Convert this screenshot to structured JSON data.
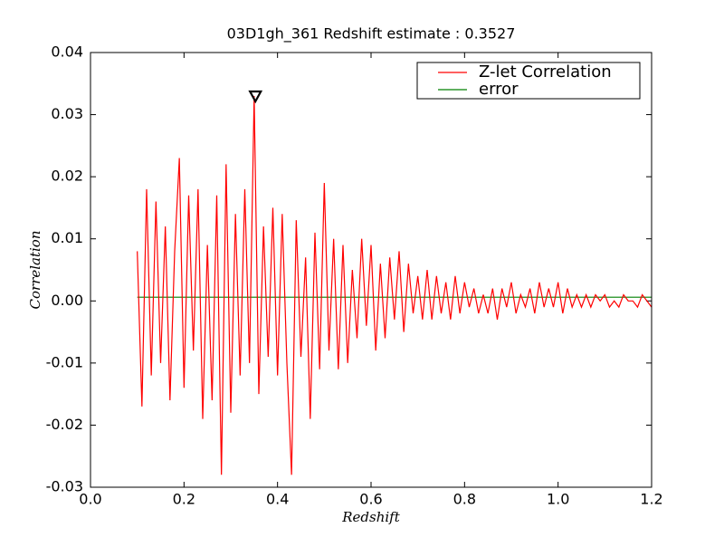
{
  "chart_data": {
    "type": "line",
    "title": "03D1gh_361 Redshift estimate : 0.3527",
    "x_label": "Redshift",
    "y_label": "Correlation",
    "x": [
      0.1,
      0.11,
      0.12,
      0.13,
      0.14,
      0.15,
      0.16,
      0.17,
      0.18,
      0.19,
      0.2,
      0.21,
      0.22,
      0.23,
      0.24,
      0.25,
      0.26,
      0.27,
      0.28,
      0.29,
      0.3,
      0.31,
      0.32,
      0.33,
      0.34,
      0.35,
      0.36,
      0.37,
      0.38,
      0.39,
      0.4,
      0.41,
      0.42,
      0.43,
      0.44,
      0.45,
      0.46,
      0.47,
      0.48,
      0.49,
      0.5,
      0.51,
      0.52,
      0.53,
      0.54,
      0.55,
      0.56,
      0.57,
      0.58,
      0.59,
      0.6,
      0.61,
      0.62,
      0.63,
      0.64,
      0.65,
      0.66,
      0.67,
      0.68,
      0.69,
      0.7,
      0.71,
      0.72,
      0.73,
      0.74,
      0.75,
      0.76,
      0.77,
      0.78,
      0.79,
      0.8,
      0.81,
      0.82,
      0.83,
      0.84,
      0.85,
      0.86,
      0.87,
      0.88,
      0.89,
      0.9,
      0.91,
      0.92,
      0.93,
      0.94,
      0.95,
      0.96,
      0.97,
      0.98,
      0.99,
      1.0,
      1.01,
      1.02,
      1.03,
      1.04,
      1.05,
      1.06,
      1.07,
      1.08,
      1.09,
      1.1,
      1.11,
      1.12,
      1.13,
      1.14,
      1.15,
      1.16,
      1.17,
      1.18,
      1.19,
      1.2
    ],
    "series": [
      {
        "name": "Z-let Correlation",
        "color": "#ff0000",
        "values": [
          0.008,
          -0.017,
          0.018,
          -0.012,
          0.016,
          -0.01,
          0.012,
          -0.016,
          0.008,
          0.023,
          -0.014,
          0.017,
          -0.008,
          0.018,
          -0.019,
          0.009,
          -0.016,
          0.017,
          -0.028,
          0.022,
          -0.018,
          0.014,
          -0.012,
          0.018,
          -0.01,
          0.033,
          -0.015,
          0.012,
          -0.009,
          0.015,
          -0.012,
          0.014,
          -0.01,
          -0.028,
          0.013,
          -0.009,
          0.007,
          -0.019,
          0.011,
          -0.011,
          0.019,
          -0.008,
          0.01,
          -0.011,
          0.009,
          -0.01,
          0.005,
          -0.006,
          0.01,
          -0.004,
          0.009,
          -0.008,
          0.006,
          -0.006,
          0.007,
          -0.003,
          0.008,
          -0.005,
          0.006,
          -0.002,
          0.004,
          -0.003,
          0.005,
          -0.003,
          0.004,
          -0.002,
          0.003,
          -0.003,
          0.004,
          -0.002,
          0.003,
          -0.001,
          0.002,
          -0.002,
          0.001,
          -0.002,
          0.002,
          -0.003,
          0.002,
          -0.001,
          0.003,
          -0.002,
          0.001,
          -0.001,
          0.002,
          -0.002,
          0.003,
          -0.001,
          0.002,
          -0.001,
          0.003,
          -0.002,
          0.002,
          -0.001,
          0.001,
          -0.001,
          0.001,
          -0.001,
          0.001,
          0.0,
          0.001,
          -0.001,
          0.0,
          -0.001,
          0.001,
          0.0,
          0.0,
          -0.001,
          0.001,
          0.0,
          -0.001
        ]
      },
      {
        "name": "error",
        "color": "#008000",
        "values": [
          0.0006,
          0.0006,
          0.0006,
          0.0006,
          0.0006,
          0.0006,
          0.0006,
          0.0006,
          0.0006,
          0.0006,
          0.0006,
          0.0006,
          0.0006,
          0.0006,
          0.0006,
          0.0006,
          0.0006,
          0.0006,
          0.0006,
          0.0006,
          0.0006,
          0.0006,
          0.0006,
          0.0006,
          0.0006,
          0.0006,
          0.0006,
          0.0006,
          0.0006,
          0.0006,
          0.0006,
          0.0006,
          0.0006,
          0.0006,
          0.0006,
          0.0006,
          0.0006,
          0.0006,
          0.0006,
          0.0006,
          0.0006,
          0.0006,
          0.0006,
          0.0006,
          0.0006,
          0.0006,
          0.0006,
          0.0006,
          0.0006,
          0.0006,
          0.0006,
          0.0006,
          0.0006,
          0.0006,
          0.0006,
          0.0006,
          0.0006,
          0.0006,
          0.0006,
          0.0006,
          0.0006,
          0.0006,
          0.0006,
          0.0006,
          0.0006,
          0.0006,
          0.0006,
          0.0006,
          0.0006,
          0.0006,
          0.0006,
          0.0006,
          0.0006,
          0.0006,
          0.0006,
          0.0006,
          0.0006,
          0.0006,
          0.0006,
          0.0006,
          0.0006,
          0.0006,
          0.0006,
          0.0006,
          0.0006,
          0.0006,
          0.0006,
          0.0006,
          0.0006,
          0.0006,
          0.0006,
          0.0006,
          0.0006,
          0.0006,
          0.0006,
          0.0006,
          0.0006,
          0.0006,
          0.0006,
          0.0006,
          0.0006,
          0.0006,
          0.0006,
          0.0006,
          0.0006,
          0.0006,
          0.0006,
          0.0006,
          0.0006,
          0.0006,
          0.0006
        ]
      }
    ],
    "marker": {
      "x": 0.3527,
      "y": 0.033
    },
    "xlim": [
      0.0,
      1.2
    ],
    "ylim": [
      -0.03,
      0.04
    ],
    "xticks": [
      {
        "value": 0,
        "label": "0.0"
      },
      0.2,
      0.4,
      0.6,
      0.8,
      {
        "value": 1,
        "label": "1.0"
      },
      1.2
    ],
    "yticks": [
      -0.03,
      -0.02,
      -0.01,
      {
        "value": 0,
        "label": "0.00"
      },
      0.01,
      0.02,
      0.03,
      0.04
    ],
    "grid": false,
    "legend": "upper right"
  }
}
